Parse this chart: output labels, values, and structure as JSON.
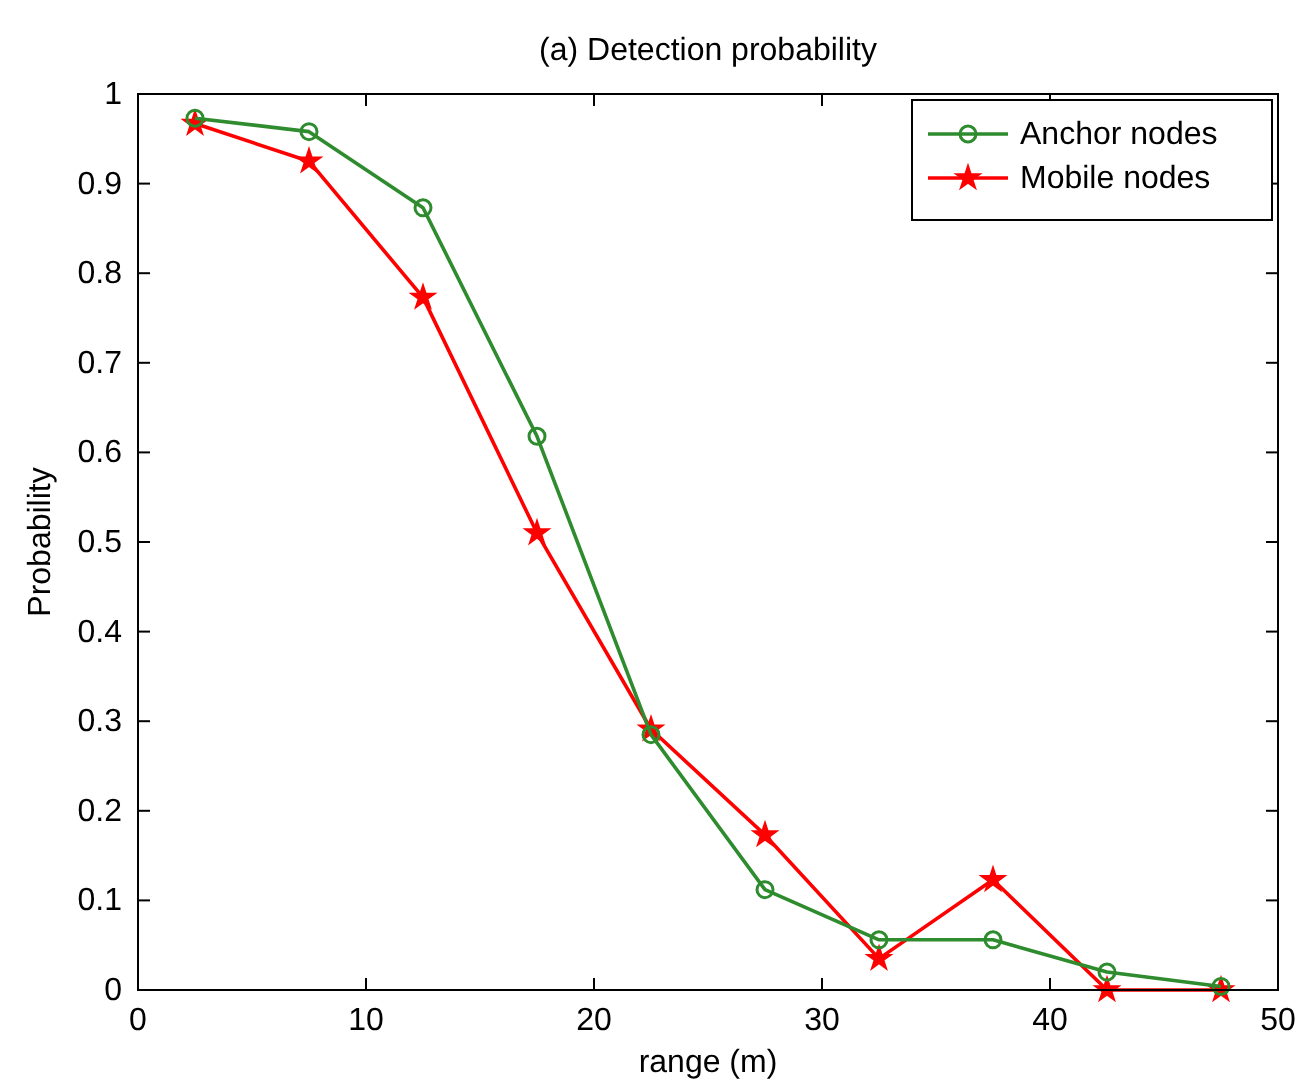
{
  "chart_data": {
    "type": "line",
    "title": "(a) Detection probability",
    "xlabel": "range (m)",
    "ylabel": "Probability",
    "x": [
      2.5,
      7.5,
      12.5,
      17.5,
      22.5,
      27.5,
      32.5,
      37.5,
      42.5,
      47.5
    ],
    "series": [
      {
        "name": "Anchor nodes",
        "color": "#2e8b2e",
        "marker": "circle",
        "values": [
          0.973,
          0.958,
          0.873,
          0.618,
          0.285,
          0.112,
          0.056,
          0.056,
          0.02,
          0.004
        ]
      },
      {
        "name": "Mobile nodes",
        "color": "#ff0000",
        "marker": "star",
        "values": [
          0.967,
          0.925,
          0.773,
          0.51,
          0.291,
          0.173,
          0.035,
          0.123,
          0,
          0
        ]
      }
    ],
    "xlim": [
      0,
      50
    ],
    "xticks": [
      0,
      10,
      20,
      30,
      40,
      50
    ],
    "ylim": [
      0,
      1
    ],
    "yticks": [
      0,
      0.1,
      0.2,
      0.3,
      0.4,
      0.5,
      0.6,
      0.7,
      0.8,
      0.9,
      1
    ],
    "legend": "top right",
    "grid": false,
    "line_style": "solid"
  }
}
